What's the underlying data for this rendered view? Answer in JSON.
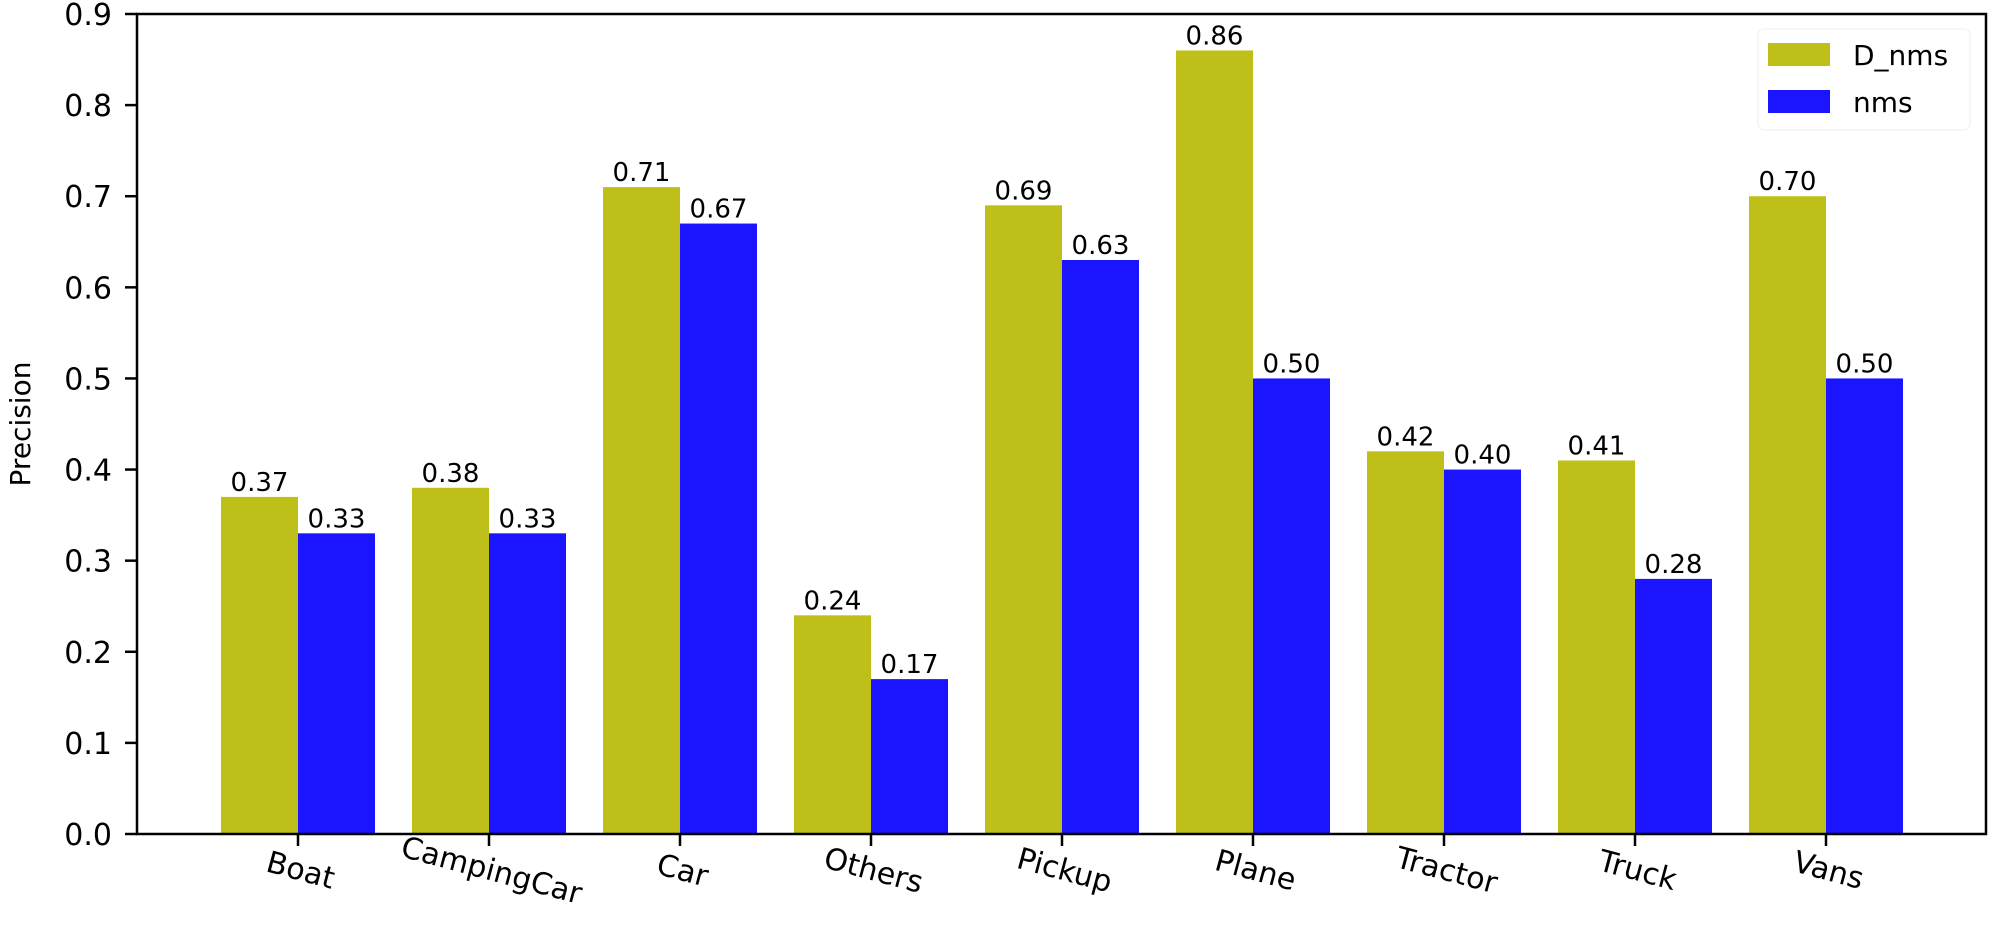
{
  "chart_data": {
    "type": "bar",
    "title": "",
    "xlabel": "",
    "ylabel": "Precision",
    "ylim": [
      0,
      0.9
    ],
    "yticks": [
      "0.0",
      "0.1",
      "0.2",
      "0.3",
      "0.4",
      "0.5",
      "0.6",
      "0.7",
      "0.8",
      "0.9"
    ],
    "categories": [
      "Boat",
      "CampingCar",
      "Car",
      "Others",
      "Pickup",
      "Plane",
      "Tractor",
      "Truck",
      "Vans"
    ],
    "series": [
      {
        "name": "D_nms",
        "color": "#bfbf1a",
        "values": [
          0.37,
          0.38,
          0.71,
          0.24,
          0.69,
          0.86,
          0.42,
          0.41,
          0.7
        ],
        "labels": [
          "0.37",
          "0.38",
          "0.71",
          "0.24",
          "0.69",
          "0.86",
          "0.42",
          "0.41",
          "0.70"
        ]
      },
      {
        "name": "nms",
        "color": "#1a14ff",
        "values": [
          0.33,
          0.33,
          0.67,
          0.17,
          0.63,
          0.5,
          0.4,
          0.28,
          0.5
        ],
        "labels": [
          "0.33",
          "0.33",
          "0.67",
          "0.17",
          "0.63",
          "0.50",
          "0.40",
          "0.28",
          "0.50"
        ]
      }
    ],
    "legend": "top-right",
    "grid": false
  }
}
